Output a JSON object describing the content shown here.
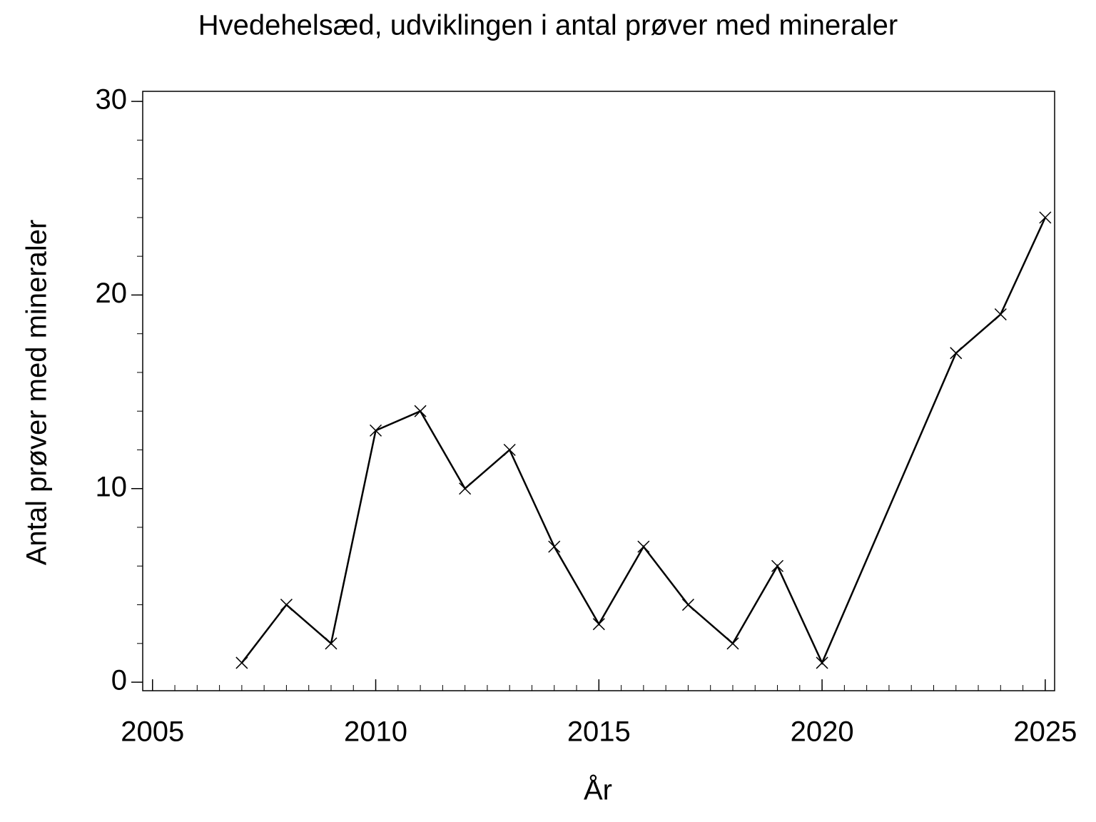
{
  "chart_data": {
    "type": "line",
    "title": "Hvedehelsæd, udviklingen i antal prøver med mineraler",
    "x_label": "År",
    "y_label": "Antal prøver med mineraler",
    "x": [
      2007,
      2008,
      2009,
      2010,
      2011,
      2012,
      2013,
      2014,
      2015,
      2016,
      2017,
      2018,
      2019,
      2020,
      2023,
      2024,
      2025
    ],
    "series": [
      {
        "color": "#000000",
        "values": [
          1,
          4,
          2,
          13,
          14,
          10,
          12,
          7,
          3,
          7,
          4,
          2,
          6,
          1,
          17,
          19,
          24
        ]
      }
    ],
    "marker": "x",
    "xlim": [
      2004.78,
      2025.21
    ],
    "xticks": [
      2005,
      2010,
      2015,
      2020,
      2025
    ],
    "xminor_step": 0.5,
    "ylim": [
      -0.44,
      30.52
    ],
    "yticks": [
      0,
      10,
      20,
      30
    ],
    "yminor_step": 2,
    "grid": false
  }
}
